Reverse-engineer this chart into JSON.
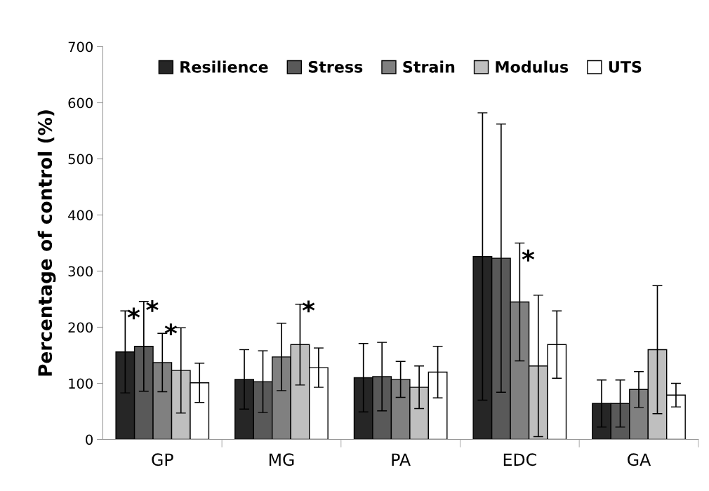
{
  "chart_data": {
    "type": "bar",
    "ylabel": "Percentage of control (%)",
    "categories": [
      "GP",
      "MG",
      "PA",
      "EDC",
      "GA"
    ],
    "ylim": [
      0,
      700
    ],
    "yticks": [
      0,
      100,
      200,
      300,
      400,
      500,
      600,
      700
    ],
    "grid": false,
    "legend": "top",
    "series": [
      {
        "name": "Resilience",
        "color": "#262626",
        "values": [
          156,
          107,
          110,
          326,
          64
        ],
        "errors": [
          73,
          53,
          61,
          256,
          42
        ],
        "value_labels": [
          "*",
          null,
          null,
          null,
          null
        ]
      },
      {
        "name": "Stress",
        "color": "#595959",
        "values": [
          166,
          103,
          112,
          323,
          64
        ],
        "errors": [
          80,
          55,
          61,
          239,
          42
        ],
        "value_labels": [
          "*",
          null,
          null,
          null,
          null
        ]
      },
      {
        "name": "Strain",
        "color": "#808080",
        "values": [
          137,
          147,
          107,
          245,
          89
        ],
        "errors": [
          52,
          60,
          32,
          105,
          32
        ],
        "value_labels": [
          "*",
          null,
          null,
          "*",
          null
        ]
      },
      {
        "name": "Modulus",
        "color": "#bfbfbf",
        "values": [
          123,
          169,
          93,
          131,
          160
        ],
        "errors": [
          76,
          72,
          38,
          126,
          114
        ],
        "value_labels": [
          null,
          "*",
          null,
          null,
          null
        ]
      },
      {
        "name": "UTS",
        "color": "#ffffff",
        "values": [
          101,
          128,
          120,
          169,
          79
        ],
        "errors": [
          35,
          35,
          46,
          60,
          21
        ],
        "value_labels": [
          null,
          null,
          null,
          null,
          null
        ]
      }
    ]
  }
}
